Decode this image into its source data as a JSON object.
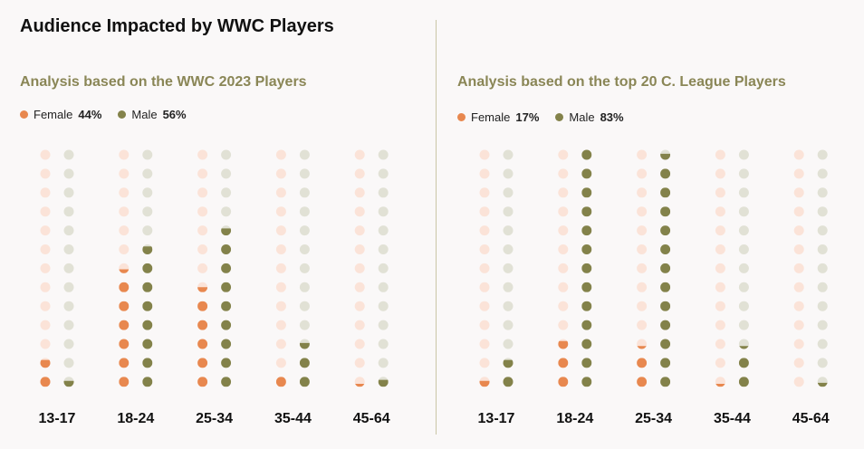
{
  "title": "Audience Impacted by WWC Players",
  "colors": {
    "female": "#e8884f",
    "female_empty": "#fbe3d8",
    "male": "#83824a",
    "male_empty": "#e1e1d5",
    "subtitle": "#8a8656"
  },
  "chart_data": [
    {
      "type": "dot-matrix",
      "title": "Analysis based on the WWC 2023 Players",
      "legend": [
        {
          "name": "Female",
          "value": "44%"
        },
        {
          "name": "Male",
          "value": "56%"
        }
      ],
      "dots_per_column": 13,
      "categories": [
        "13-17",
        "18-24",
        "25-34",
        "35-44",
        "45-64"
      ],
      "series": [
        {
          "name": "Female",
          "values": [
            1.8,
            6.4,
            5.5,
            1.0,
            0.3
          ]
        },
        {
          "name": "Male",
          "values": [
            0.6,
            7.8,
            8.7,
            2.6,
            0.7
          ]
        }
      ]
    },
    {
      "type": "dot-matrix",
      "title": "Analysis based on the top 20 C. League Players",
      "legend": [
        {
          "name": "Female",
          "value": "17%"
        },
        {
          "name": "Male",
          "value": "83%"
        }
      ],
      "dots_per_column": 13,
      "categories": [
        "13-17",
        "18-24",
        "25-34",
        "35-44",
        "45-64"
      ],
      "series": [
        {
          "name": "Female",
          "values": [
            0.6,
            2.8,
            2.3,
            0.3,
            0.0
          ]
        },
        {
          "name": "Male",
          "values": [
            1.8,
            13.0,
            12.6,
            2.3,
            0.4
          ]
        }
      ]
    }
  ]
}
